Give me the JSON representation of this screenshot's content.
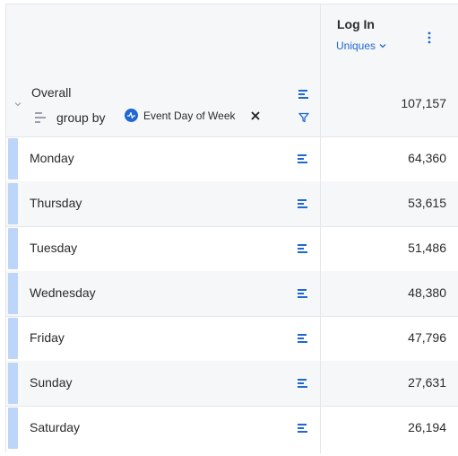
{
  "header": {
    "metric_title": "Log In",
    "metric_sub": "Uniques"
  },
  "overall": {
    "label": "Overall",
    "value": "107,157",
    "groupby_label": "group by",
    "property": "Event Day of Week"
  },
  "rows": [
    {
      "label": "Monday",
      "value": "64,360"
    },
    {
      "label": "Thursday",
      "value": "53,615"
    },
    {
      "label": "Tuesday",
      "value": "51,486"
    },
    {
      "label": "Wednesday",
      "value": "48,380"
    },
    {
      "label": "Friday",
      "value": "47,796"
    },
    {
      "label": "Sunday",
      "value": "27,631"
    },
    {
      "label": "Saturday",
      "value": "26,194"
    }
  ],
  "colors": {
    "accent": "#1f67d2",
    "swatch": "#bcd5f8",
    "alt_row": "#f6f7f9",
    "border": "#e3e6ea"
  },
  "icons": {
    "kebab": "kebab-menu-icon",
    "chevron": "chevron-down-icon",
    "bars": "bar-chart-icon",
    "filter": "filter-icon",
    "close": "close-icon",
    "property": "property-icon"
  }
}
